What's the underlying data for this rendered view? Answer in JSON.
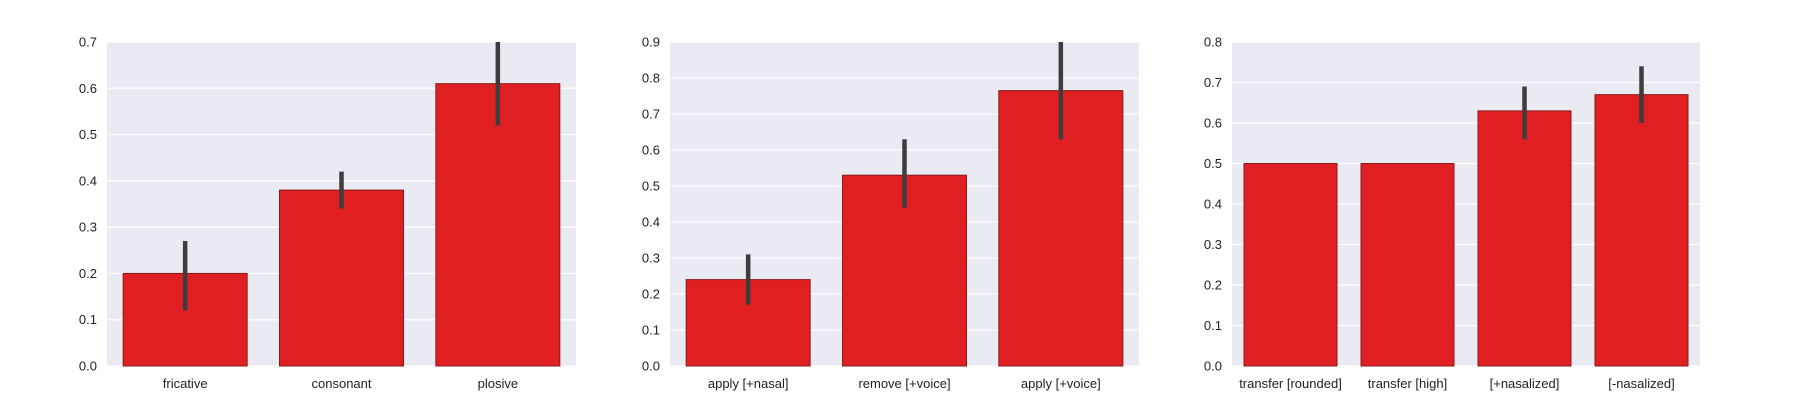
{
  "chart_data": [
    {
      "type": "bar",
      "title": "",
      "xlabel": "",
      "ylabel": "",
      "ylim": [
        0,
        0.7
      ],
      "yticks": [
        "0.0",
        "0.1",
        "0.2",
        "0.3",
        "0.4",
        "0.5",
        "0.6",
        "0.7"
      ],
      "grid": true,
      "categories": [
        "fricative",
        "consonant",
        "plosive"
      ],
      "values": [
        0.2,
        0.38,
        0.61
      ],
      "error_low": [
        0.12,
        0.34,
        0.52
      ],
      "error_high": [
        0.27,
        0.42,
        0.7
      ]
    },
    {
      "type": "bar",
      "title": "",
      "xlabel": "",
      "ylabel": "",
      "ylim": [
        0,
        0.9
      ],
      "yticks": [
        "0.0",
        "0.1",
        "0.2",
        "0.3",
        "0.4",
        "0.5",
        "0.6",
        "0.7",
        "0.8",
        "0.9"
      ],
      "grid": true,
      "categories": [
        "apply [+nasal]",
        "remove [+voice]",
        "apply [+voice]"
      ],
      "values": [
        0.24,
        0.53,
        0.765
      ],
      "error_low": [
        0.17,
        0.44,
        0.63
      ],
      "error_high": [
        0.31,
        0.63,
        0.9
      ]
    },
    {
      "type": "bar",
      "title": "",
      "xlabel": "",
      "ylabel": "",
      "ylim": [
        0,
        0.8
      ],
      "yticks": [
        "0.0",
        "0.1",
        "0.2",
        "0.3",
        "0.4",
        "0.5",
        "0.6",
        "0.7",
        "0.8"
      ],
      "grid": true,
      "categories": [
        "transfer [rounded]",
        "transfer [high]",
        "[+nasalized]",
        "[-nasalized]"
      ],
      "values": [
        0.5,
        0.5,
        0.63,
        0.67
      ],
      "error_low": [
        null,
        null,
        0.56,
        0.6
      ],
      "error_high": [
        null,
        null,
        0.69,
        0.74
      ]
    }
  ],
  "colors": {
    "bar_fill": "#e01f22",
    "bar_edge": "#8a1a1a",
    "error_bar": "#3d3d3d",
    "plot_bg": "#eaeaf2",
    "grid": "#ffffff"
  }
}
